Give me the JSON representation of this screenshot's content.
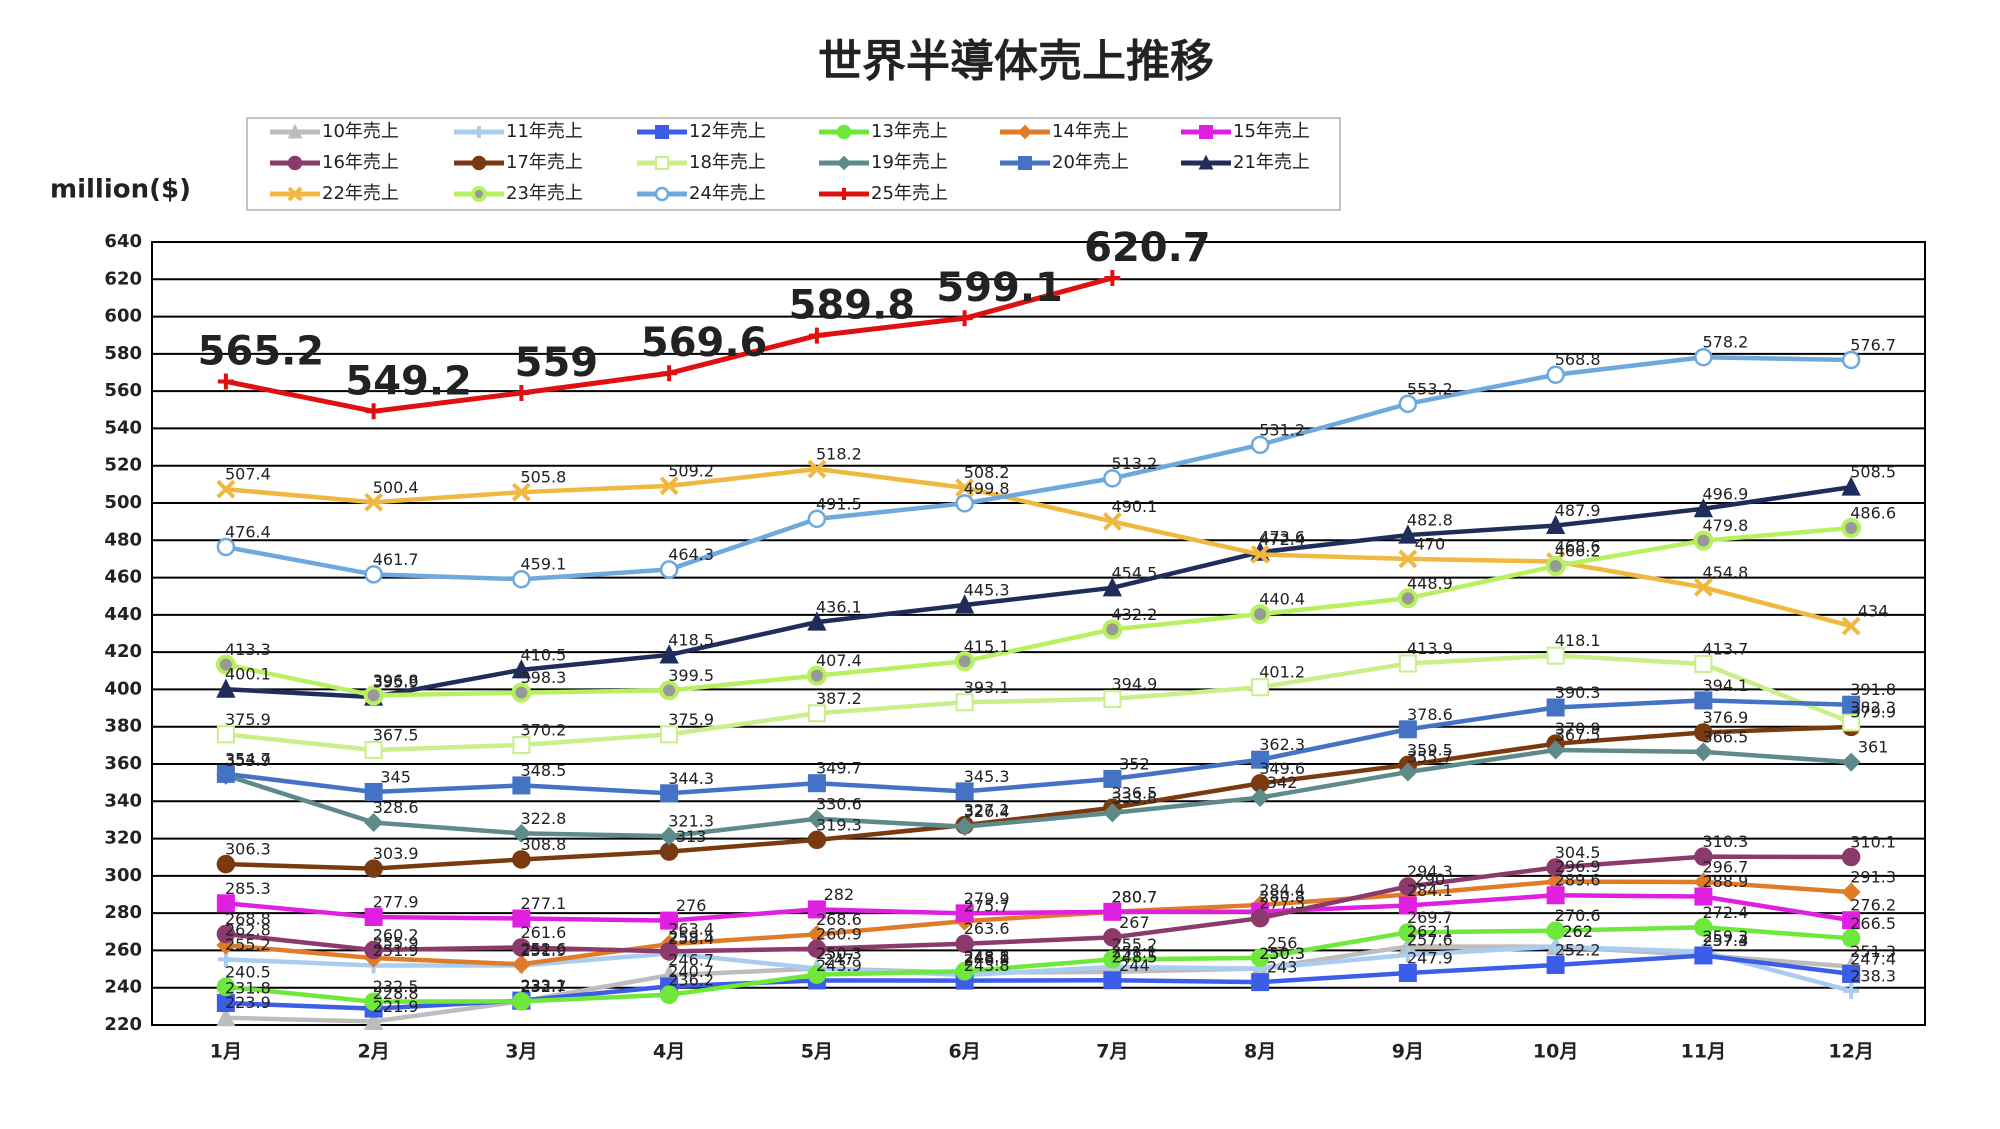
{
  "chart_data": {
    "type": "line",
    "title": "世界半導体売上推移",
    "y_label": "million($)",
    "categories": [
      "1月",
      "2月",
      "3月",
      "4月",
      "5月",
      "6月",
      "7月",
      "8月",
      "9月",
      "10月",
      "11月",
      "12月"
    ],
    "ylim": [
      220,
      640
    ],
    "yticks": [
      220,
      240,
      260,
      280,
      300,
      320,
      340,
      360,
      380,
      400,
      420,
      440,
      460,
      480,
      500,
      520,
      540,
      560,
      580,
      600,
      620,
      640
    ],
    "grid": true,
    "series": [
      {
        "name": "10年売上",
        "color": "#bdbdbd",
        "marker": "triangle",
        "values": [
          223.9,
          221.9,
          232.7,
          246.7,
          250.3,
          248.1,
          248.5,
          250.3,
          262.1,
          262,
          257.4,
          251.3
        ]
      },
      {
        "name": "11年売上",
        "color": "#a9cdf0",
        "marker": "plus",
        "values": [
          255.2,
          251.9,
          251.9,
          258.4,
          250.3,
          246.8,
          251.1,
          250.3,
          257.6,
          262,
          259.3,
          238.3
        ]
      },
      {
        "name": "12年売上",
        "color": "#3b5de7",
        "marker": "square",
        "values": [
          231.8,
          228.8,
          233.1,
          240.7,
          243.9,
          243.8,
          244,
          243,
          247.9,
          252.2,
          257.3,
          247.4
        ]
      },
      {
        "name": "13年売上",
        "color": "#6ee83a",
        "marker": "circle",
        "values": [
          240.5,
          232.5,
          232.7,
          236.2,
          247,
          248.8,
          255.2,
          256,
          269.7,
          270.6,
          272.4,
          266.5
        ]
      },
      {
        "name": "14年売上",
        "color": "#e07b28",
        "marker": "diamond",
        "values": [
          262.8,
          255.9,
          252.6,
          263.4,
          268.6,
          275.7,
          280.7,
          284.4,
          290,
          296.9,
          296.7,
          291.3
        ]
      },
      {
        "name": "15年売上",
        "color": "#e020e0",
        "marker": "square",
        "values": [
          285.3,
          277.9,
          277.1,
          276,
          282,
          279.9,
          280.7,
          280.8,
          284.1,
          289.6,
          288.9,
          276.2
        ]
      },
      {
        "name": "16年売上",
        "color": "#8b3a6b",
        "marker": "circle",
        "values": [
          268.8,
          260.2,
          261.6,
          259.5,
          260.9,
          263.6,
          267,
          277.3,
          294.3,
          304.5,
          310.3,
          310.1
        ]
      },
      {
        "name": "17年売上",
        "color": "#7a3a10",
        "marker": "circle",
        "values": [
          306.3,
          303.9,
          308.8,
          313,
          319.3,
          327.2,
          336.5,
          349.6,
          359.5,
          370.9,
          376.9,
          379.9
        ]
      },
      {
        "name": "18年売上",
        "color": "#c8ef8a",
        "marker": "hollow-square",
        "values": [
          375.9,
          367.5,
          370.2,
          375.9,
          387.2,
          393.1,
          394.9,
          401.2,
          413.9,
          418.1,
          413.7,
          382.3
        ]
      },
      {
        "name": "19年売上",
        "color": "#5f8a8a",
        "marker": "diamond",
        "values": [
          353.9,
          328.6,
          322.8,
          321.3,
          330.6,
          326.4,
          333.8,
          342,
          355.7,
          367.5,
          366.5,
          361
        ]
      },
      {
        "name": "20年売上",
        "color": "#4472c4",
        "marker": "square",
        "values": [
          354.7,
          345,
          348.5,
          344.3,
          349.7,
          345.3,
          352,
          362.3,
          378.6,
          390.3,
          394.1,
          391.8
        ]
      },
      {
        "name": "21年売上",
        "color": "#1f2d5a",
        "marker": "triangle",
        "values": [
          400.1,
          395.9,
          410.5,
          418.5,
          436.1,
          445.3,
          454.5,
          473.6,
          482.8,
          487.9,
          496.9,
          508.5
        ]
      },
      {
        "name": "22年売上",
        "color": "#f0b840",
        "marker": "x",
        "values": [
          507.4,
          500.4,
          505.8,
          509.2,
          518.2,
          508.2,
          490.1,
          472.4,
          470,
          468.6,
          454.8,
          434
        ]
      },
      {
        "name": "23年売上",
        "color": "#b8f060",
        "marker": "dot-circle",
        "values": [
          413.3,
          396.8,
          398.3,
          399.5,
          407.4,
          415.1,
          432.2,
          440.4,
          448.9,
          466.2,
          479.8,
          486.6
        ]
      },
      {
        "name": "24年売上",
        "color": "#6fa8dc",
        "marker": "hollow-circle",
        "values": [
          476.4,
          461.7,
          459.1,
          464.3,
          491.5,
          499.8,
          513.2,
          531.2,
          553.2,
          568.8,
          578.2,
          576.7
        ]
      },
      {
        "name": "25年売上",
        "color": "#e01010",
        "marker": "plus",
        "values": [
          565.2,
          549.2,
          559,
          569.6,
          589.8,
          599.1,
          620.7,
          null,
          null,
          null,
          null,
          null
        ]
      }
    ]
  }
}
